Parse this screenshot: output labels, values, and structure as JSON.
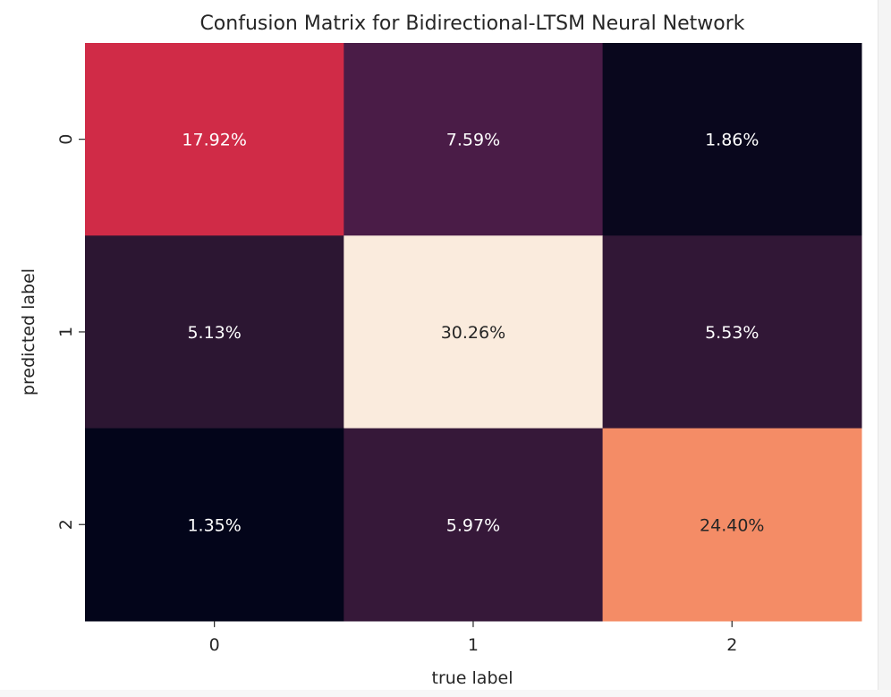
{
  "chart_data": {
    "type": "heatmap",
    "title": "Confusion Matrix for Bidirectional-LTSM Neural Network",
    "xlabel": "true label",
    "ylabel": "predicted label",
    "x_categories": [
      "0",
      "1",
      "2"
    ],
    "y_categories": [
      "0",
      "1",
      "2"
    ],
    "values": [
      [
        17.92,
        7.59,
        1.86
      ],
      [
        5.13,
        30.26,
        5.53
      ],
      [
        1.35,
        5.97,
        24.4
      ]
    ],
    "labels": [
      [
        "17.92%",
        "7.59%",
        "1.86%"
      ],
      [
        "5.13%",
        "30.26%",
        "5.53%"
      ],
      [
        "1.35%",
        "5.97%",
        "24.40%"
      ]
    ],
    "colormap": "rocket",
    "colorbar": false,
    "colors": {
      "low": "#03051a",
      "high": "#faebdd",
      "text_dark": "#262626",
      "text_light": "#ffffff"
    }
  }
}
